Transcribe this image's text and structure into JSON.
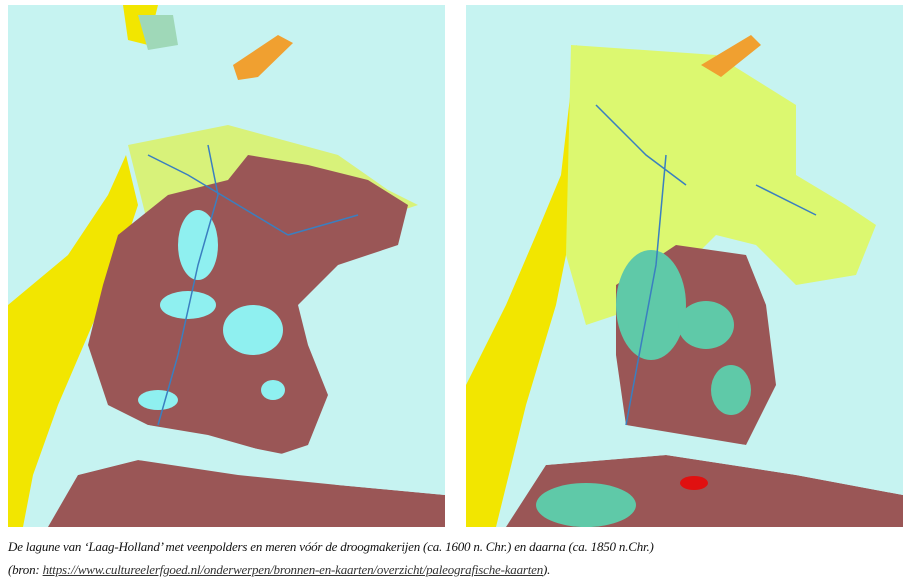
{
  "figure": {
    "left_map": {
      "period_label": "ca. 1600 n. Chr.",
      "colors": {
        "sea": "#c6f3f1",
        "dunes": "#f2e600",
        "peat": "#9a5656",
        "clay": "#d8f27a",
        "lakes": "#8ff0f0",
        "islands": "#f0a030"
      }
    },
    "right_map": {
      "period_label": "ca. 1850 n. Chr.",
      "colors": {
        "sea": "#c6f3f1",
        "dunes": "#f2e600",
        "peat": "#9a5656",
        "clay": "#dcf870",
        "reclaimed_lakes": "#5fc9a8",
        "urban": "#e01010"
      }
    }
  },
  "caption": {
    "line1": "De lagune van ‘Laag-Holland’ met veenpolders en meren vóór de droogmakerijen (ca. 1600 n. Chr.) en daarna (ca. 1850 n.Chr.)",
    "line2_prefix": "(bron: ",
    "source_url": "https://www.cultureelerfgoed.nl/onderwerpen/bronnen-en-kaarten/overzicht/paleografische-kaarten",
    "line2_suffix": ")."
  }
}
